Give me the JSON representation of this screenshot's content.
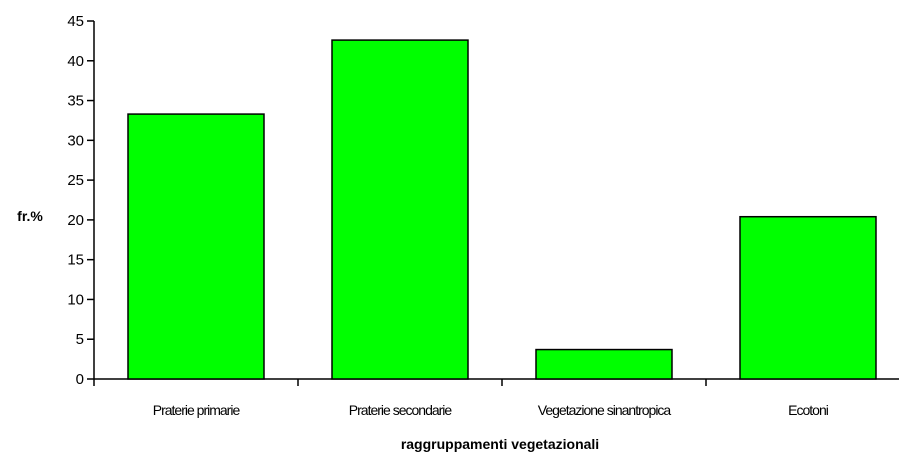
{
  "chart_data": {
    "type": "bar",
    "categories": [
      "Praterie primarie",
      "Praterie secondarie",
      "Vegetazione sinantropica",
      "Ecotoni"
    ],
    "values": [
      33.3,
      42.6,
      3.7,
      20.4
    ],
    "title": "",
    "xlabel": "raggruppamenti vegetazionali",
    "ylabel": "fr.%",
    "ylim": [
      0,
      45
    ],
    "yticks": [
      0,
      5,
      10,
      15,
      20,
      25,
      30,
      35,
      40,
      45
    ],
    "grid": false,
    "legend": "none",
    "colors": {
      "bar_fill": "#00ff00",
      "bar_stroke": "#000000",
      "axis": "#000000"
    }
  }
}
